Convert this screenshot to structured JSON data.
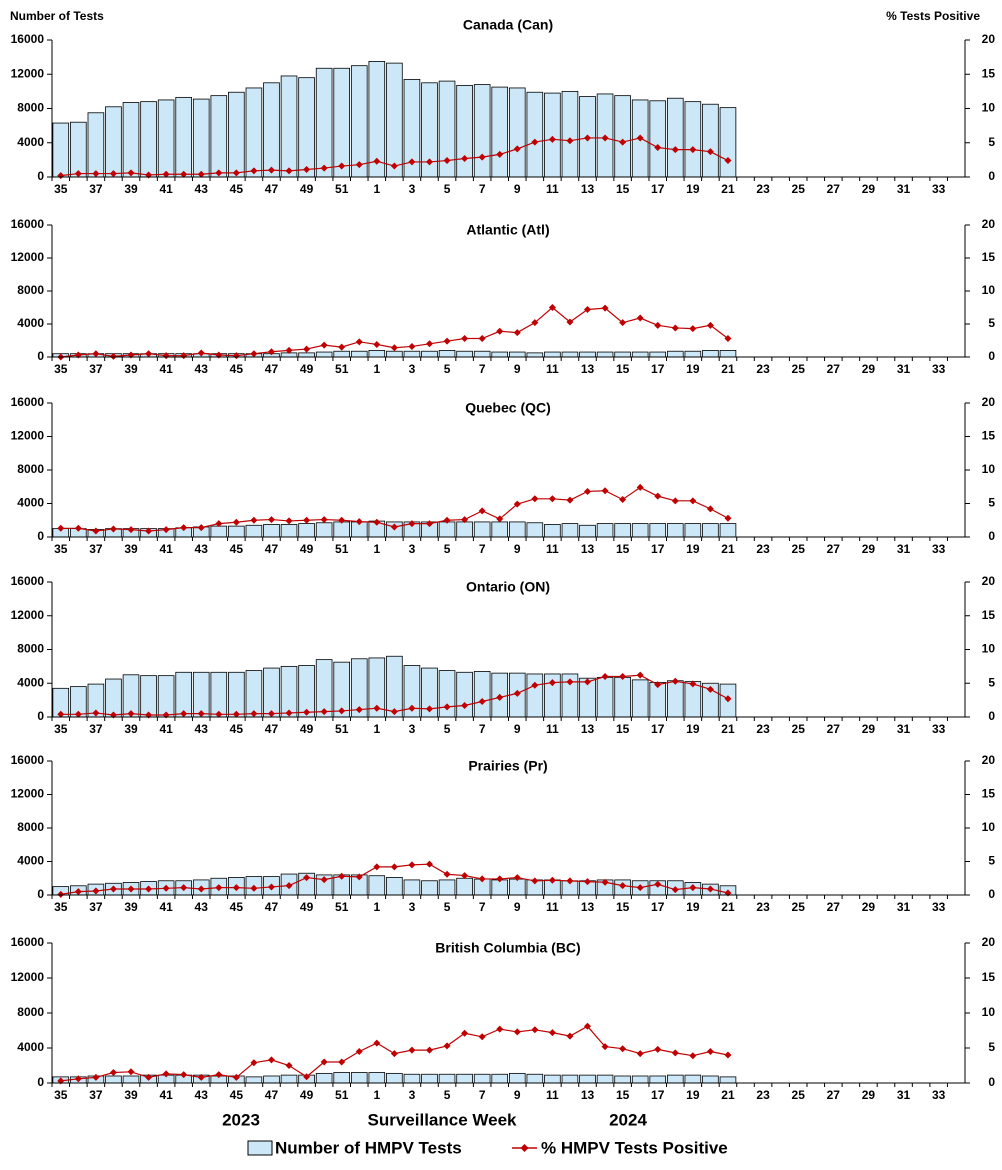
{
  "chart_data": [
    {
      "type": "bar",
      "title": "Canada (Can)",
      "y_label": "Number of Tests",
      "y2_label": "% Tests Positive",
      "categories": [
        "35",
        null,
        "37",
        null,
        "39",
        null,
        "41",
        null,
        "43",
        null,
        "45",
        null,
        "47",
        null,
        "49",
        null,
        "51",
        null,
        "1",
        null,
        "3",
        null,
        "5",
        null,
        "7",
        null,
        "9",
        null,
        "11",
        null,
        "13",
        null,
        "15",
        null,
        "17",
        null,
        "19",
        null,
        "21",
        null,
        "23",
        null,
        "25",
        null,
        "27",
        null,
        "29",
        null,
        "31",
        null,
        "33",
        null
      ],
      "series": [
        {
          "name": "Number of HMPV Tests",
          "color": "#cce8f8",
          "values": [
            6300,
            6400,
            7500,
            8200,
            8700,
            8800,
            9000,
            9300,
            9100,
            9500,
            9900,
            10400,
            11000,
            11800,
            11600,
            12700,
            12700,
            13000,
            13500,
            13300,
            11400,
            11000,
            11200,
            10700,
            10800,
            10500,
            10400,
            9900,
            9800,
            10000,
            9400,
            9700,
            9500,
            9000,
            8900,
            9200,
            8800,
            8500,
            8100,
            null,
            null,
            null,
            null,
            null,
            null,
            null,
            null,
            null,
            null,
            null,
            null,
            null
          ]
        },
        {
          "name": "% HMPV Tests Positive",
          "color": "#c00000",
          "axis": "y2",
          "values": [
            0.2,
            0.5,
            0.5,
            0.5,
            0.6,
            0.3,
            0.4,
            0.4,
            0.4,
            0.6,
            0.6,
            0.9,
            1.0,
            0.9,
            1.1,
            1.3,
            1.6,
            1.8,
            2.3,
            1.6,
            2.2,
            2.2,
            2.4,
            2.7,
            2.9,
            3.3,
            4.1,
            5.1,
            5.5,
            5.3,
            5.7,
            5.7,
            5.1,
            5.7,
            4.3,
            4.0,
            4.0,
            3.7,
            2.4,
            null,
            null,
            null,
            null,
            null,
            null,
            null,
            null,
            null,
            null,
            null,
            null,
            null
          ]
        }
      ],
      "ylim": [
        0,
        16000
      ],
      "yticks": [
        0,
        4000,
        8000,
        12000,
        16000
      ],
      "y2lim": [
        0,
        20
      ],
      "y2ticks": [
        0,
        5,
        10,
        15,
        20
      ]
    },
    {
      "type": "bar",
      "title": "Atlantic (Atl)",
      "categories": [
        "35",
        null,
        "37",
        null,
        "39",
        null,
        "41",
        null,
        "43",
        null,
        "45",
        null,
        "47",
        null,
        "49",
        null,
        "51",
        null,
        "1",
        null,
        "3",
        null,
        "5",
        null,
        "7",
        null,
        "9",
        null,
        "11",
        null,
        "13",
        null,
        "15",
        null,
        "17",
        null,
        "19",
        null,
        "21",
        null,
        "23",
        null,
        "25",
        null,
        "27",
        null,
        "29",
        null,
        "31",
        null,
        "33",
        null
      ],
      "series": [
        {
          "name": "Number of HMPV Tests",
          "color": "#cce8f8",
          "values": [
            400,
            400,
            400,
            400,
            400,
            400,
            400,
            400,
            400,
            400,
            400,
            400,
            400,
            500,
            500,
            600,
            700,
            700,
            800,
            700,
            700,
            700,
            800,
            700,
            700,
            600,
            600,
            500,
            600,
            600,
            600,
            600,
            600,
            600,
            600,
            700,
            700,
            800,
            800,
            null,
            null,
            null,
            null,
            null,
            null,
            null,
            null,
            null,
            null,
            null,
            null,
            null
          ]
        },
        {
          "name": "% HMPV Tests Positive",
          "color": "#c00000",
          "axis": "y2",
          "values": [
            0,
            0.3,
            0.5,
            0.1,
            0.3,
            0.5,
            0.2,
            0.2,
            0.6,
            0.3,
            0.2,
            0.5,
            0.8,
            1.0,
            1.2,
            1.8,
            1.5,
            2.3,
            1.9,
            1.4,
            1.6,
            2.0,
            2.4,
            2.8,
            2.8,
            3.9,
            3.7,
            5.2,
            7.5,
            5.3,
            7.2,
            7.4,
            5.2,
            5.9,
            4.8,
            4.4,
            4.3,
            4.8,
            2.8,
            null,
            null,
            null,
            null,
            null,
            null,
            null,
            null,
            null,
            null,
            null,
            null,
            null
          ]
        }
      ],
      "ylim": [
        0,
        16000
      ],
      "yticks": [
        0,
        4000,
        8000,
        12000,
        16000
      ],
      "y2lim": [
        0,
        20
      ],
      "y2ticks": [
        0,
        5,
        10,
        15,
        20
      ]
    },
    {
      "type": "bar",
      "title": "Quebec (QC)",
      "categories": [
        "35",
        null,
        "37",
        null,
        "39",
        null,
        "41",
        null,
        "43",
        null,
        "45",
        null,
        "47",
        null,
        "49",
        null,
        "51",
        null,
        "1",
        null,
        "3",
        null,
        "5",
        null,
        "7",
        null,
        "9",
        null,
        "11",
        null,
        "13",
        null,
        "15",
        null,
        "17",
        null,
        "19",
        null,
        "21",
        null,
        "23",
        null,
        "25",
        null,
        "27",
        null,
        "29",
        null,
        "31",
        null,
        "33",
        null
      ],
      "series": [
        {
          "name": "Number of HMPV Tests",
          "color": "#cce8f8",
          "values": [
            1000,
            1000,
            900,
            1000,
            1000,
            1000,
            1000,
            1100,
            1200,
            1300,
            1300,
            1400,
            1500,
            1500,
            1600,
            1700,
            1800,
            1800,
            1900,
            1800,
            1800,
            1800,
            1800,
            1800,
            1800,
            1800,
            1800,
            1700,
            1500,
            1600,
            1400,
            1600,
            1600,
            1600,
            1600,
            1600,
            1600,
            1600,
            1600,
            null,
            null,
            null,
            null,
            null,
            null,
            null,
            null,
            null,
            null,
            null,
            null,
            null
          ]
        },
        {
          "name": "% HMPV Tests Positive",
          "color": "#c00000",
          "axis": "y2",
          "values": [
            1.3,
            1.3,
            0.9,
            1.2,
            1.1,
            0.9,
            1.1,
            1.4,
            1.4,
            2.0,
            2.2,
            2.5,
            2.6,
            2.4,
            2.5,
            2.6,
            2.5,
            2.3,
            2.2,
            1.5,
            2.0,
            2.0,
            2.5,
            2.6,
            3.9,
            2.7,
            4.9,
            5.7,
            5.7,
            5.5,
            6.8,
            6.9,
            5.6,
            7.4,
            6.1,
            5.4,
            5.4,
            4.2,
            2.8,
            null,
            null,
            null,
            null,
            null,
            null,
            null,
            null,
            null,
            null,
            null,
            null,
            null
          ]
        }
      ],
      "ylim": [
        0,
        16000
      ],
      "yticks": [
        0,
        4000,
        8000,
        12000,
        16000
      ],
      "y2lim": [
        0,
        20
      ],
      "y2ticks": [
        0,
        5,
        10,
        15,
        20
      ]
    },
    {
      "type": "bar",
      "title": "Ontario (ON)",
      "categories": [
        "35",
        null,
        "37",
        null,
        "39",
        null,
        "41",
        null,
        "43",
        null,
        "45",
        null,
        "47",
        null,
        "49",
        null,
        "51",
        null,
        "1",
        null,
        "3",
        null,
        "5",
        null,
        "7",
        null,
        "9",
        null,
        "11",
        null,
        "13",
        null,
        "15",
        null,
        "17",
        null,
        "19",
        null,
        "21",
        null,
        "23",
        null,
        "25",
        null,
        "27",
        null,
        "29",
        null,
        "31",
        null,
        "33",
        null
      ],
      "series": [
        {
          "name": "Number of HMPV Tests",
          "color": "#cce8f8",
          "values": [
            3400,
            3600,
            3900,
            4500,
            5000,
            4900,
            4900,
            5300,
            5300,
            5300,
            5300,
            5500,
            5800,
            6000,
            6100,
            6800,
            6500,
            6900,
            7000,
            7200,
            6100,
            5800,
            5500,
            5300,
            5400,
            5200,
            5200,
            5100,
            5100,
            5100,
            4600,
            4700,
            4700,
            4400,
            4100,
            4300,
            4200,
            4000,
            3900,
            null,
            null,
            null,
            null,
            null,
            null,
            null,
            null,
            null,
            null,
            null,
            null,
            null
          ]
        },
        {
          "name": "% HMPV Tests Positive",
          "color": "#c00000",
          "axis": "y2",
          "values": [
            0.4,
            0.4,
            0.6,
            0.3,
            0.5,
            0.3,
            0.3,
            0.5,
            0.5,
            0.4,
            0.4,
            0.5,
            0.5,
            0.6,
            0.7,
            0.8,
            0.9,
            1.1,
            1.3,
            0.8,
            1.3,
            1.2,
            1.5,
            1.7,
            2.3,
            2.9,
            3.5,
            4.7,
            5.1,
            5.2,
            5.2,
            6.0,
            6.0,
            6.2,
            4.8,
            5.3,
            4.9,
            4.1,
            2.7,
            null,
            null,
            null,
            null,
            null,
            null,
            null,
            null,
            null,
            null,
            null,
            null,
            null
          ]
        }
      ],
      "ylim": [
        0,
        16000
      ],
      "yticks": [
        0,
        4000,
        8000,
        12000,
        16000
      ],
      "y2lim": [
        0,
        20
      ],
      "y2ticks": [
        0,
        5,
        10,
        15,
        20
      ]
    },
    {
      "type": "bar",
      "title": "Prairies (Pr)",
      "categories": [
        "35",
        null,
        "37",
        null,
        "39",
        null,
        "41",
        null,
        "43",
        null,
        "45",
        null,
        "47",
        null,
        "49",
        null,
        "51",
        null,
        "1",
        null,
        "3",
        null,
        "5",
        null,
        "7",
        null,
        "9",
        null,
        "11",
        null,
        "13",
        null,
        "15",
        null,
        "17",
        null,
        "19",
        null,
        "21",
        null,
        "23",
        null,
        "25",
        null,
        "27",
        null,
        "29",
        null,
        "31",
        null,
        "33",
        null
      ],
      "series": [
        {
          "name": "Number of HMPV Tests",
          "color": "#cce8f8",
          "values": [
            1000,
            1100,
            1300,
            1400,
            1500,
            1600,
            1700,
            1700,
            1800,
            2000,
            2100,
            2200,
            2200,
            2500,
            2600,
            2400,
            2400,
            2400,
            2300,
            2100,
            1800,
            1700,
            1800,
            2000,
            1900,
            1800,
            1900,
            1800,
            1800,
            1700,
            1700,
            1800,
            1800,
            1700,
            1700,
            1700,
            1500,
            1300,
            1100,
            null,
            null,
            null,
            null,
            null,
            null,
            null,
            null,
            null,
            null,
            null,
            null,
            null
          ]
        },
        {
          "name": "% HMPV Tests Positive",
          "color": "#c00000",
          "axis": "y2",
          "values": [
            0.1,
            0.5,
            0.6,
            0.9,
            0.9,
            0.9,
            1.0,
            1.1,
            0.9,
            1.1,
            1.1,
            1.0,
            1.2,
            1.4,
            2.6,
            2.3,
            2.8,
            2.7,
            4.2,
            4.2,
            4.5,
            4.6,
            3.1,
            2.9,
            2.4,
            2.4,
            2.6,
            2.1,
            2.2,
            2.1,
            2.0,
            1.9,
            1.4,
            1.1,
            1.6,
            0.8,
            1.1,
            0.9,
            0.3,
            null,
            null,
            null,
            null,
            null,
            null,
            null,
            null,
            null,
            null,
            null,
            null,
            null
          ]
        }
      ],
      "ylim": [
        0,
        16000
      ],
      "yticks": [
        0,
        4000,
        8000,
        12000,
        16000
      ],
      "y2lim": [
        0,
        20
      ],
      "y2ticks": [
        0,
        5,
        10,
        15,
        20
      ]
    },
    {
      "type": "bar",
      "title": "British Columbia (BC)",
      "x_label": "Surveillance Week",
      "annotations": [
        "2023",
        "2024"
      ],
      "categories": [
        "35",
        null,
        "37",
        null,
        "39",
        null,
        "41",
        null,
        "43",
        null,
        "45",
        null,
        "47",
        null,
        "49",
        null,
        "51",
        null,
        "1",
        null,
        "3",
        null,
        "5",
        null,
        "7",
        null,
        "9",
        null,
        "11",
        null,
        "13",
        null,
        "15",
        null,
        "17",
        null,
        "19",
        null,
        "21",
        null,
        "23",
        null,
        "25",
        null,
        "27",
        null,
        "29",
        null,
        "31",
        null,
        "33",
        null
      ],
      "series": [
        {
          "name": "Number of HMPV Tests",
          "color": "#cce8f8",
          "values": [
            700,
            700,
            800,
            800,
            800,
            900,
            900,
            900,
            900,
            800,
            800,
            700,
            800,
            900,
            900,
            1100,
            1200,
            1200,
            1200,
            1100,
            1000,
            1000,
            1000,
            1000,
            1000,
            1000,
            1100,
            1000,
            900,
            900,
            900,
            900,
            800,
            800,
            800,
            900,
            900,
            800,
            700,
            null,
            null,
            null,
            null,
            null,
            null,
            null,
            null,
            null,
            null,
            null,
            null,
            null
          ]
        },
        {
          "name": "% HMPV Tests Positive",
          "color": "#c00000",
          "axis": "y2",
          "values": [
            0.3,
            0.6,
            0.8,
            1.5,
            1.6,
            0.8,
            1.3,
            1.2,
            0.8,
            1.2,
            0.8,
            2.9,
            3.3,
            2.5,
            0.9,
            3.0,
            3.0,
            4.5,
            5.7,
            4.2,
            4.7,
            4.7,
            5.3,
            7.1,
            6.6,
            7.7,
            7.3,
            7.6,
            7.2,
            6.7,
            8.1,
            5.2,
            4.9,
            4.2,
            4.8,
            4.3,
            3.9,
            4.5,
            4.0,
            null,
            null,
            null,
            null,
            null,
            null,
            null,
            null,
            null,
            null,
            null,
            null,
            null
          ]
        }
      ],
      "ylim": [
        0,
        16000
      ],
      "yticks": [
        0,
        4000,
        8000,
        12000,
        16000
      ],
      "y2lim": [
        0,
        20
      ],
      "y2ticks": [
        0,
        5,
        10,
        15,
        20
      ]
    }
  ]
}
